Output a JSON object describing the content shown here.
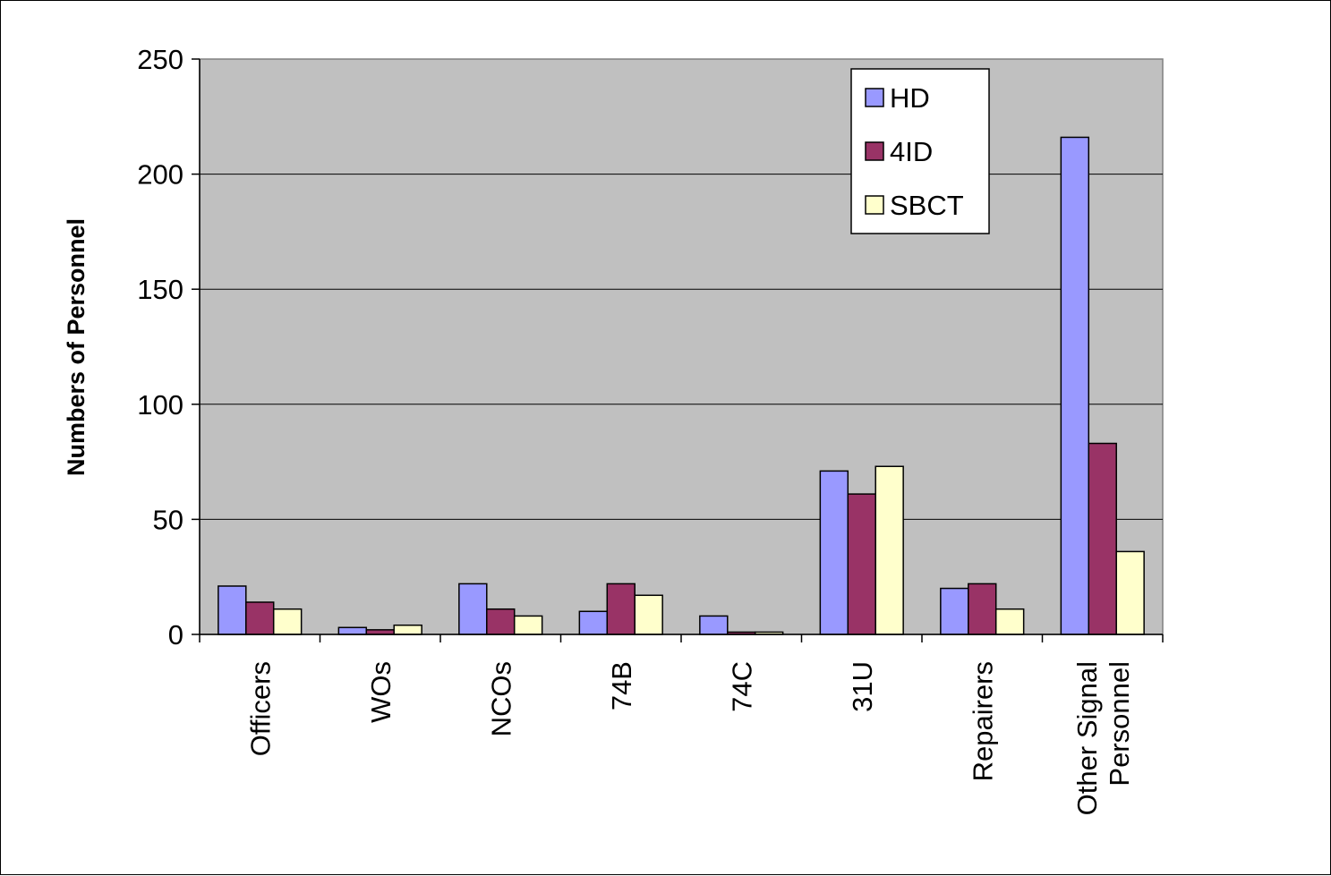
{
  "chart_data": {
    "type": "bar",
    "title": "",
    "xlabel": "",
    "ylabel": "Numbers of Personnel",
    "ylim": [
      0,
      250
    ],
    "yticks": [
      0,
      50,
      100,
      150,
      200,
      250
    ],
    "grid": true,
    "legend_position": "top-right",
    "plot_background": "#C0C0C0",
    "categories": [
      [
        "Officers"
      ],
      [
        "WOs"
      ],
      [
        "NCOs"
      ],
      [
        "74B"
      ],
      [
        "74C"
      ],
      [
        "31U"
      ],
      [
        "Repairers"
      ],
      [
        "Other Signal",
        "Personnel"
      ]
    ],
    "series": [
      {
        "name": "HD",
        "color": "#9999FF",
        "values": [
          21,
          3,
          22,
          10,
          8,
          71,
          20,
          216
        ]
      },
      {
        "name": "4ID",
        "color": "#993366",
        "values": [
          14,
          2,
          11,
          22,
          1,
          61,
          22,
          83
        ]
      },
      {
        "name": "SBCT",
        "color": "#FFFFCC",
        "values": [
          11,
          4,
          8,
          17,
          1,
          73,
          11,
          36
        ]
      }
    ]
  }
}
